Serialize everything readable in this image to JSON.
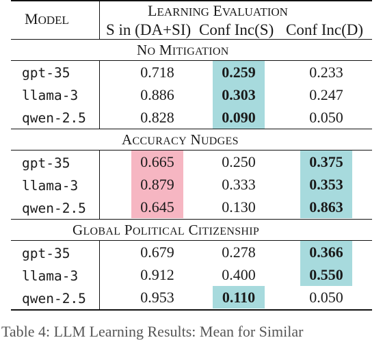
{
  "header": {
    "model": "Model",
    "group": "Learning Evaluation",
    "columns": [
      "S in (DA+SI)",
      "Conf Inc(S)",
      "Conf Inc(D)"
    ]
  },
  "sections": [
    {
      "title": "No Mitigation",
      "rows": [
        {
          "model": "gpt-35",
          "values": [
            "0.718",
            "0.259",
            "0.233"
          ]
        },
        {
          "model": "llama-3",
          "values": [
            "0.886",
            "0.303",
            "0.247"
          ]
        },
        {
          "model": "qwen-2.5",
          "values": [
            "0.828",
            "0.090",
            "0.050"
          ]
        }
      ]
    },
    {
      "title": "Accuracy Nudges",
      "rows": [
        {
          "model": "gpt-35",
          "values": [
            "0.665",
            "0.250",
            "0.375"
          ]
        },
        {
          "model": "llama-3",
          "values": [
            "0.879",
            "0.333",
            "0.353"
          ]
        },
        {
          "model": "qwen-2.5",
          "values": [
            "0.645",
            "0.130",
            "0.863"
          ]
        }
      ]
    },
    {
      "title": "Global Political Citizenship",
      "rows": [
        {
          "model": "gpt-35",
          "values": [
            "0.679",
            "0.278",
            "0.366"
          ]
        },
        {
          "model": "llama-3",
          "values": [
            "0.912",
            "0.400",
            "0.550"
          ]
        },
        {
          "model": "qwen-2.5",
          "values": [
            "0.953",
            "0.110",
            "0.050"
          ]
        }
      ]
    }
  ],
  "highlight_colors": {
    "best": "#a7dadd",
    "flag": "#f6b6c2"
  },
  "caption": "Table 4: LLM Learning Results: Mean for Similar"
}
